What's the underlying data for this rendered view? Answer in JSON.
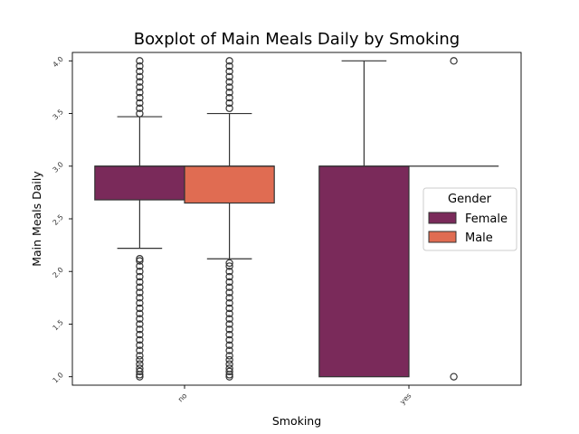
{
  "chart_data": {
    "type": "box",
    "title": "Boxplot of Main Meals Daily by Smoking",
    "xlabel": "Smoking",
    "ylabel": "Main Meals Daily",
    "categories": [
      "no",
      "yes"
    ],
    "ylim": [
      0.92,
      4.08
    ],
    "yticks": [
      1.0,
      1.5,
      2.0,
      2.5,
      3.0,
      3.5,
      4.0
    ],
    "ytick_labels": [
      "1.0",
      "1.5",
      "2.0",
      "2.5",
      "3.0",
      "3.5",
      "4.0"
    ],
    "grid": false,
    "legend": {
      "title": "Gender",
      "placement": "center-right"
    },
    "series": [
      {
        "name": "Female",
        "color": "#7A2A5A",
        "boxes": [
          {
            "category": "no",
            "whisker_low": 2.22,
            "q1": 2.68,
            "median": 3.0,
            "q3": 3.0,
            "whisker_high": 3.47,
            "outliers": [
              1.0,
              1.02,
              1.05,
              1.08,
              1.12,
              1.16,
              1.2,
              1.25,
              1.3,
              1.35,
              1.4,
              1.45,
              1.5,
              1.55,
              1.6,
              1.65,
              1.7,
              1.75,
              1.8,
              1.85,
              1.9,
              1.95,
              2.0,
              2.05,
              2.1,
              2.12,
              3.5,
              3.55,
              3.6,
              3.65,
              3.7,
              3.75,
              3.8,
              3.85,
              3.9,
              3.95,
              4.0
            ]
          },
          {
            "category": "yes",
            "whisker_low": 1.0,
            "q1": 1.0,
            "median": 3.0,
            "q3": 3.0,
            "whisker_high": 4.0,
            "outliers": []
          }
        ]
      },
      {
        "name": "Male",
        "color": "#E06C52",
        "boxes": [
          {
            "category": "no",
            "whisker_low": 2.12,
            "q1": 2.65,
            "median": 3.0,
            "q3": 3.0,
            "whisker_high": 3.5,
            "outliers": [
              1.0,
              1.02,
              1.05,
              1.08,
              1.12,
              1.16,
              1.2,
              1.25,
              1.3,
              1.35,
              1.4,
              1.45,
              1.5,
              1.55,
              1.6,
              1.65,
              1.7,
              1.75,
              1.8,
              1.85,
              1.9,
              1.95,
              2.0,
              2.05,
              2.08,
              3.55,
              3.6,
              3.65,
              3.7,
              3.75,
              3.8,
              3.85,
              3.9,
              3.95,
              4.0
            ]
          },
          {
            "category": "yes",
            "whisker_low": 3.0,
            "q1": 3.0,
            "median": 3.0,
            "q3": 3.0,
            "whisker_high": 3.0,
            "outliers": [
              1.0,
              4.0
            ]
          }
        ]
      }
    ]
  }
}
